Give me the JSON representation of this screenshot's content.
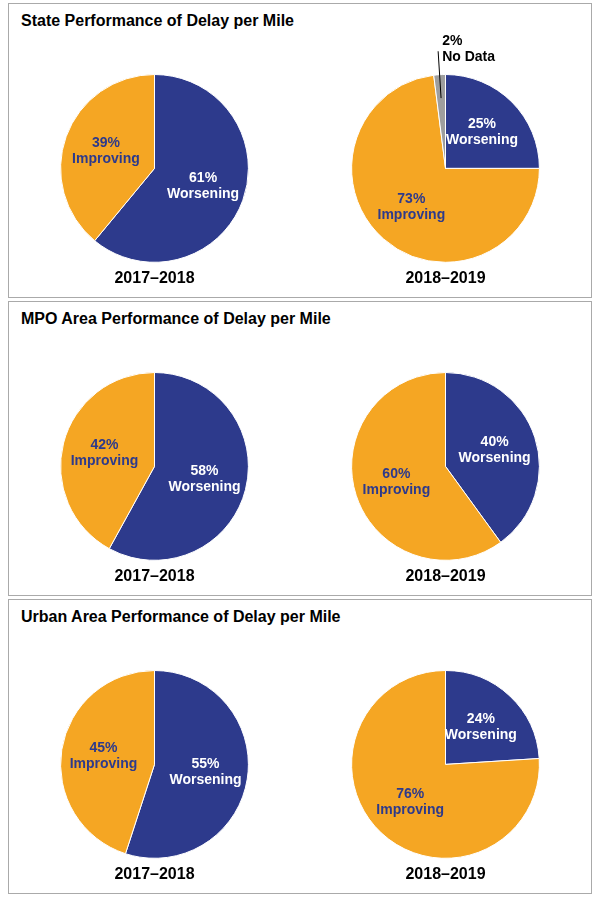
{
  "chart_data": [
    {
      "title": "State Performance of Delay per Mile",
      "charts": [
        {
          "type": "pie",
          "title": "2017–2018",
          "values": [
            61,
            39
          ],
          "colors": [
            "#2d3a8c",
            "#f5a623"
          ],
          "value_labels": [
            "61%\nWorsening",
            "39%\nImproving"
          ],
          "data_labels": true
        },
        {
          "type": "pie",
          "title": "2018–2019",
          "values": [
            25,
            73,
            2
          ],
          "colors": [
            "#2d3a8c",
            "#f5a623",
            "#9e9e9e"
          ],
          "value_labels": [
            "25%\nWorsening",
            "73%\nImproving",
            "2%\nNo Data"
          ],
          "data_labels": true
        }
      ]
    },
    {
      "title": "MPO Area Performance of Delay per Mile",
      "charts": [
        {
          "type": "pie",
          "title": "2017–2018",
          "values": [
            58,
            42
          ],
          "colors": [
            "#2d3a8c",
            "#f5a623"
          ],
          "value_labels": [
            "58%\nWorsening",
            "42%\nImproving"
          ],
          "data_labels": true
        },
        {
          "type": "pie",
          "title": "2018–2019",
          "values": [
            40,
            60
          ],
          "colors": [
            "#2d3a8c",
            "#f5a623"
          ],
          "value_labels": [
            "40%\nWorsening",
            "60%\nImproving"
          ],
          "data_labels": true
        }
      ]
    },
    {
      "title": "Urban Area Performance of Delay per Mile",
      "charts": [
        {
          "type": "pie",
          "title": "2017–2018",
          "values": [
            55,
            45
          ],
          "colors": [
            "#2d3a8c",
            "#f5a623"
          ],
          "value_labels": [
            "55%\nWorsening",
            "45%\nImproving"
          ],
          "data_labels": true
        },
        {
          "type": "pie",
          "title": "2018–2019",
          "values": [
            24,
            76
          ],
          "colors": [
            "#2d3a8c",
            "#f5a623"
          ],
          "value_labels": [
            "24%\nWorsening",
            "76%\nImproving"
          ],
          "data_labels": true
        }
      ]
    }
  ]
}
